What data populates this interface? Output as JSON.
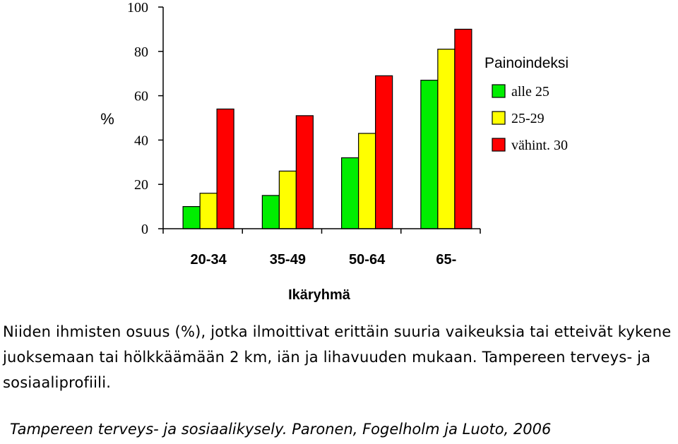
{
  "chart_data": {
    "type": "bar",
    "categories": [
      "20-34",
      "35-49",
      "50-64",
      "65-"
    ],
    "series": [
      {
        "name": "alle 25",
        "values": [
          10,
          15,
          32,
          67
        ],
        "color": "#00ee00"
      },
      {
        "name": "25-29",
        "values": [
          16,
          26,
          43,
          81
        ],
        "color": "#ffff00"
      },
      {
        "name": "vähint. 30",
        "values": [
          54,
          51,
          69,
          90
        ],
        "color": "#ff0000"
      }
    ],
    "xlabel": "Ikäryhmä",
    "ylabel": "%",
    "ylim": [
      0,
      100
    ],
    "yticks": [
      "0",
      "20",
      "40",
      "60",
      "80",
      "100"
    ],
    "legend_title": "Painoindeksi",
    "legend_position": "right",
    "grid": false
  },
  "caption": "Niiden ihmisten osuus (%), jotka ilmoittivat erittäin suuria vaikeuksia tai etteivät kykene juoksemaan tai hölkkäämään 2 km, iän ja lihavuuden mukaan. Tampereen terveys- ja sosiaaliprofiili.",
  "source": "Tampereen terveys- ja sosiaalikysely. Paronen, Fogelholm ja  Luoto, 2006"
}
